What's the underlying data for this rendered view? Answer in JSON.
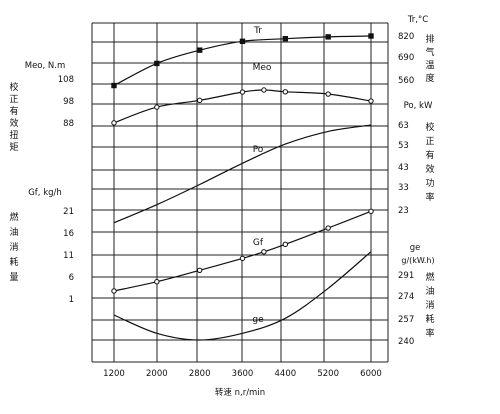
{
  "chart_data": {
    "type": "line",
    "x": [
      1200,
      1600,
      2000,
      2400,
      2800,
      3200,
      3600,
      4000,
      4400,
      4800,
      5200,
      5600,
      6000
    ],
    "xlabel": "转速 n,r/min",
    "x_ticks": [
      "1200",
      "2000",
      "2800",
      "3600",
      "4400",
      "5200",
      "6000"
    ],
    "xlim": [
      1200,
      6000
    ],
    "grid": true,
    "left_axes": [
      {
        "unit": "Meo, N.m",
        "title": "校正有效扭矩",
        "ticks": [
          "108",
          "98",
          "88"
        ]
      },
      {
        "unit": "Gf, kg/h",
        "title": "燃油消耗量",
        "ticks": [
          "21",
          "16",
          "11",
          "6",
          "1"
        ]
      }
    ],
    "right_axes": [
      {
        "unit": "Tr,°C",
        "title": "排气温度",
        "ticks": [
          "820",
          "690",
          "560"
        ]
      },
      {
        "unit": "Po, kW",
        "title": "校正有效功率",
        "ticks": [
          "63",
          "53",
          "43",
          "33",
          "23"
        ]
      },
      {
        "unit": "ge g/(kW.h)",
        "title": "燃油消耗率",
        "ticks": [
          "291",
          "274",
          "257",
          "240"
        ]
      }
    ],
    "series": [
      {
        "name": "Tr",
        "axis": "Tr,°C",
        "marker": "square",
        "x": [
          1200,
          2000,
          2800,
          3600,
          4400,
          5200,
          6000
        ],
        "values": [
          540,
          665,
          740,
          790,
          805,
          815,
          820
        ]
      },
      {
        "name": "Meo",
        "axis": "Meo, N.m",
        "marker": "open-circle",
        "x": [
          1200,
          2000,
          2800,
          3600,
          4000,
          4400,
          5200,
          6000
        ],
        "values": [
          89.4,
          96.4,
          99.4,
          103.1,
          104.0,
          103.2,
          102.2,
          99.1
        ]
      },
      {
        "name": "Po",
        "axis": "Po, kW",
        "marker": "none",
        "x": [
          1200,
          2000,
          2800,
          3600,
          4400,
          5200,
          6000
        ],
        "values": [
          17.0,
          25.5,
          35.0,
          45.0,
          54.0,
          60.0,
          63.0
        ]
      },
      {
        "name": "Gf",
        "axis": "Gf, kg/h",
        "marker": "open-circle",
        "x": [
          1200,
          2000,
          2800,
          3600,
          4000,
          4400,
          5200,
          6000
        ],
        "values": [
          2.6,
          4.7,
          7.3,
          10.0,
          11.5,
          13.2,
          16.9,
          20.7
        ]
      },
      {
        "name": "ge",
        "axis": "ge g/(kW.h)",
        "marker": "none",
        "x": [
          1200,
          2000,
          2800,
          3600,
          4400,
          5200,
          6000
        ],
        "values": [
          255,
          244,
          240,
          244,
          253,
          271,
          293
        ]
      }
    ]
  }
}
